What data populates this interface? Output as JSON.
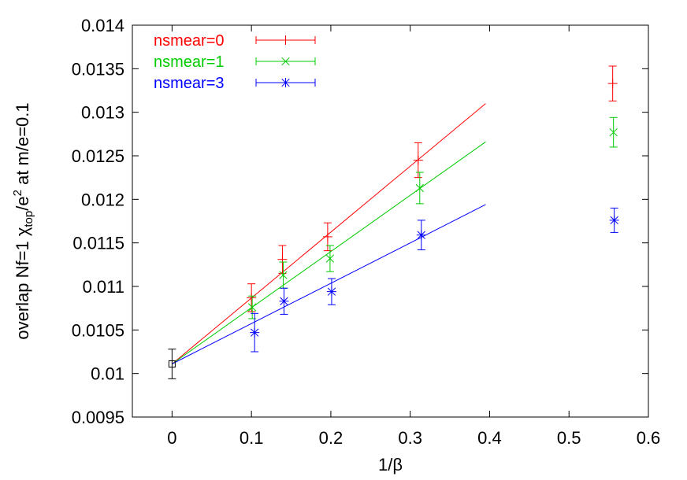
{
  "chart_data": {
    "type": "scatter",
    "xlabel": "1/β",
    "ylabel": {
      "prefix": "overlap Nf=1  ",
      "chi": "χ",
      "chi_sub": "top",
      "div": "/e",
      "exp": "2",
      "suffix": "  at m/e=0.1"
    },
    "xlim": [
      -0.05,
      0.6
    ],
    "ylim": [
      0.0095,
      0.014
    ],
    "xticks": [
      {
        "value": 0,
        "label": "0"
      },
      {
        "value": 0.1,
        "label": "0.1"
      },
      {
        "value": 0.2,
        "label": "0.2"
      },
      {
        "value": 0.3,
        "label": "0.3"
      },
      {
        "value": 0.4,
        "label": "0.4"
      },
      {
        "value": 0.5,
        "label": "0.5"
      },
      {
        "value": 0.6,
        "label": "0.6"
      }
    ],
    "yticks": [
      {
        "value": 0.0095,
        "label": "0.0095"
      },
      {
        "value": 0.01,
        "label": "0.01"
      },
      {
        "value": 0.0105,
        "label": "0.0105"
      },
      {
        "value": 0.011,
        "label": "0.011"
      },
      {
        "value": 0.0115,
        "label": "0.0115"
      },
      {
        "value": 0.012,
        "label": "0.012"
      },
      {
        "value": 0.0125,
        "label": "0.0125"
      },
      {
        "value": 0.013,
        "label": "0.013"
      },
      {
        "value": 0.0135,
        "label": "0.0135"
      },
      {
        "value": 0.014,
        "label": "0.014"
      }
    ],
    "grid": false,
    "legend_position": "top-left",
    "series": [
      {
        "name": "nsmear=0",
        "color": "#ff0000",
        "marker": "plus",
        "points": [
          {
            "x": 0.1,
            "y": 0.01087,
            "err": 0.00016
          },
          {
            "x": 0.139,
            "y": 0.01131,
            "err": 0.00016
          },
          {
            "x": 0.196,
            "y": 0.01157,
            "err": 0.00016
          },
          {
            "x": 0.31,
            "y": 0.01245,
            "err": 0.0002
          },
          {
            "x": 0.555,
            "y": 0.01333,
            "err": 0.0002
          }
        ],
        "fit": {
          "x0": 0,
          "y0": 0.01011,
          "x1": 0.395,
          "y1": 0.0131
        }
      },
      {
        "name": "nsmear=1",
        "color": "#00cc00",
        "marker": "cross",
        "points": [
          {
            "x": 0.101,
            "y": 0.01076,
            "err": 0.00013
          },
          {
            "x": 0.14,
            "y": 0.01113,
            "err": 0.00015
          },
          {
            "x": 0.199,
            "y": 0.01132,
            "err": 0.00015
          },
          {
            "x": 0.312,
            "y": 0.01213,
            "err": 0.00018
          },
          {
            "x": 0.556,
            "y": 0.01277,
            "err": 0.00017
          }
        ],
        "fit": {
          "x0": 0,
          "y0": 0.01011,
          "x1": 0.395,
          "y1": 0.01266
        }
      },
      {
        "name": "nsmear=3",
        "color": "#0000ff",
        "marker": "star",
        "points": [
          {
            "x": 0.104,
            "y": 0.01047,
            "err": 0.00022
          },
          {
            "x": 0.141,
            "y": 0.01083,
            "err": 0.00015
          },
          {
            "x": 0.201,
            "y": 0.01094,
            "err": 0.00015
          },
          {
            "x": 0.314,
            "y": 0.01159,
            "err": 0.00017
          },
          {
            "x": 0.557,
            "y": 0.01176,
            "err": 0.00014
          }
        ],
        "fit": {
          "x0": 0,
          "y0": 0.01011,
          "x1": 0.395,
          "y1": 0.01194
        }
      }
    ],
    "extrapolated_point": {
      "x": 0,
      "y": 0.01011,
      "err": 0.00017,
      "color": "#000000",
      "marker": "open-square"
    }
  }
}
